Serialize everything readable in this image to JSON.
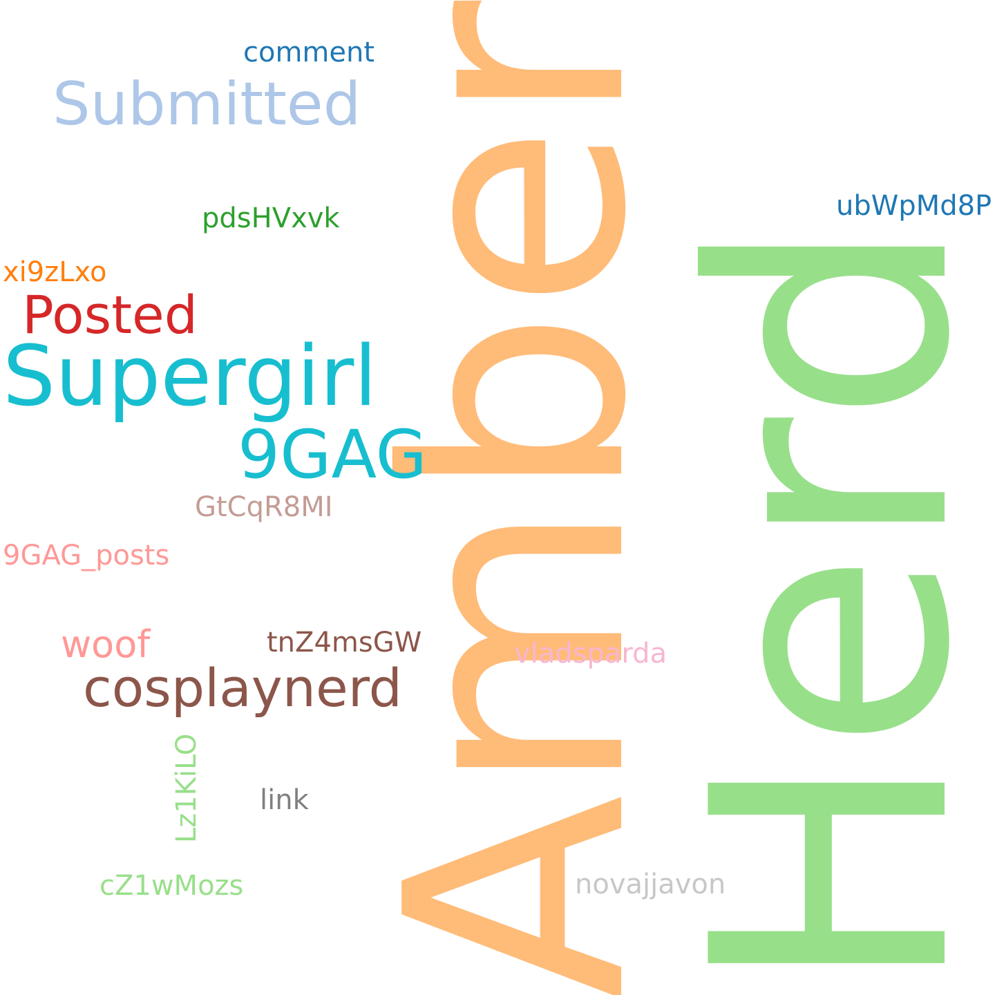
{
  "words": [
    {
      "text": "Amber",
      "color": "#ffbb78",
      "rotated": true
    },
    {
      "text": "Herd",
      "color": "#98df8a",
      "rotated": true
    },
    {
      "text": "Supergirl",
      "color": "#17becf",
      "rotated": false
    },
    {
      "text": "9GAG",
      "color": "#17becf",
      "rotated": false
    },
    {
      "text": "cosplaynerd",
      "color": "#8c564b",
      "rotated": false
    },
    {
      "text": "Submitted",
      "color": "#aec7e8",
      "rotated": false
    },
    {
      "text": "Posted",
      "color": "#d62728",
      "rotated": false
    },
    {
      "text": "woof",
      "color": "#ff9896",
      "rotated": false
    },
    {
      "text": "comment",
      "color": "#1f77b4",
      "rotated": false
    },
    {
      "text": "ubWpMd8P",
      "color": "#1f77b4",
      "rotated": false
    },
    {
      "text": "pdsHVxvk",
      "color": "#2ca02c",
      "rotated": false
    },
    {
      "text": "xi9zLxo",
      "color": "#ff7f0e",
      "rotated": false
    },
    {
      "text": "GtCqR8MI",
      "color": "#c49c94",
      "rotated": false
    },
    {
      "text": "9GAG_posts",
      "color": "#ff9896",
      "rotated": false
    },
    {
      "text": "tnZ4msGW",
      "color": "#8c564b",
      "rotated": false
    },
    {
      "text": "vladsparda",
      "color": "#f7b6d2",
      "rotated": false
    },
    {
      "text": "Lz1KiLO",
      "color": "#98df8a",
      "rotated": true
    },
    {
      "text": "link",
      "color": "#7f7f7f",
      "rotated": false
    },
    {
      "text": "cZ1wMozs",
      "color": "#98df8a",
      "rotated": false
    },
    {
      "text": "novajjavon",
      "color": "#c7c7c7",
      "rotated": false
    }
  ]
}
